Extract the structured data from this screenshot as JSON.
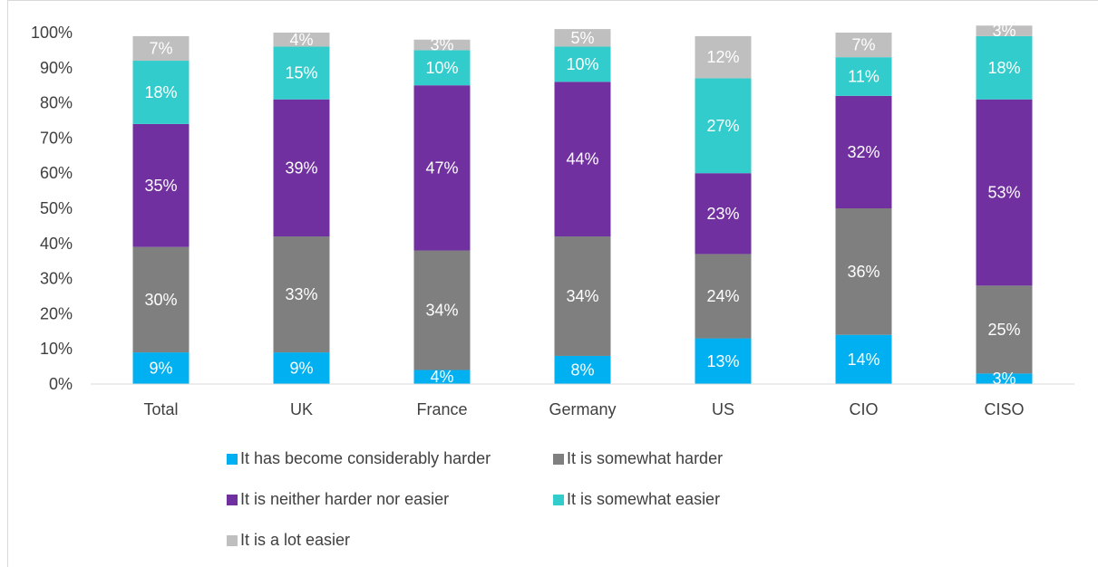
{
  "chart_data": {
    "type": "bar",
    "stacked": true,
    "percent": true,
    "categories": [
      "Total",
      "UK",
      "France",
      "Germany",
      "US",
      "CIO",
      "CISO"
    ],
    "ylim": [
      0,
      100
    ],
    "yticks": [
      "0%",
      "10%",
      "20%",
      "30%",
      "40%",
      "50%",
      "60%",
      "70%",
      "80%",
      "90%",
      "100%"
    ],
    "grid": false,
    "legend_position": "bottom",
    "series": [
      {
        "name": "It has become considerably harder",
        "color": "#00B0F0",
        "values": [
          9,
          9,
          4,
          8,
          13,
          14,
          3
        ],
        "labels": [
          "9%",
          "9%",
          "4%",
          "8%",
          "13%",
          "14%",
          "3%"
        ]
      },
      {
        "name": "It is somewhat harder",
        "color": "#7F7F7F",
        "values": [
          30,
          33,
          34,
          34,
          24,
          36,
          25
        ],
        "labels": [
          "30%",
          "33%",
          "34%",
          "34%",
          "24%",
          "36%",
          "25%"
        ]
      },
      {
        "name": "It is neither harder nor easier",
        "color": "#7030A0",
        "values": [
          35,
          39,
          47,
          44,
          23,
          32,
          53
        ],
        "labels": [
          "35%",
          "39%",
          "47%",
          "44%",
          "23%",
          "32%",
          "53%"
        ]
      },
      {
        "name": "It is somewhat easier",
        "color": "#33CCCC",
        "values": [
          18,
          15,
          10,
          10,
          27,
          11,
          18
        ],
        "labels": [
          "18%",
          "15%",
          "10%",
          "10%",
          "27%",
          "11%",
          "18%"
        ]
      },
      {
        "name": "It is a lot easier",
        "color": "#BFBFBF",
        "values": [
          7,
          4,
          3,
          5,
          12,
          7,
          3
        ],
        "labels": [
          "7%",
          "4%",
          "3%",
          "5%",
          "12%",
          "7%",
          "3%"
        ]
      }
    ]
  }
}
